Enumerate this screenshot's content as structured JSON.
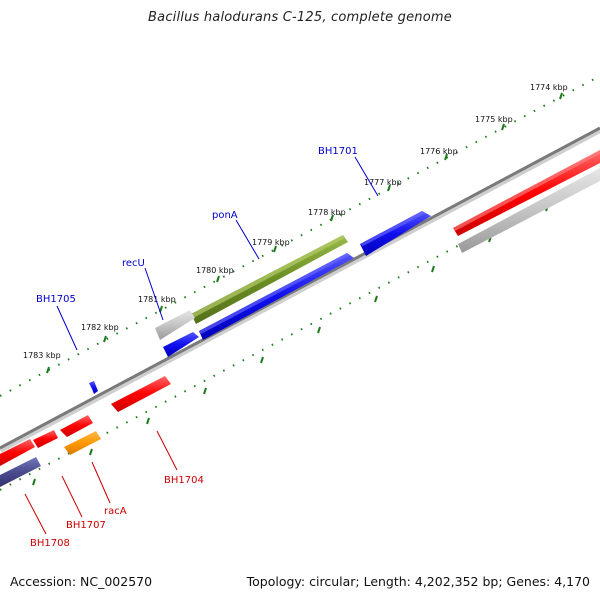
{
  "title": "Bacillus halodurans C-125, complete genome",
  "footer": {
    "accession": "Accession: NC_002570",
    "summary": "Topology: circular; Length: 4,202,352 bp; Genes: 4,170"
  },
  "colors": {
    "forward_label": "#0000cc",
    "reverse_label": "#cc0000",
    "backbone": "#888888",
    "ticks": "#1a7a1a"
  },
  "scale_labels": [
    "1774 kbp",
    "1775 kbp",
    "1776 kbp",
    "1777 kbp",
    "1778 kbp",
    "1779 kbp",
    "1780 kbp",
    "1781 kbp",
    "1782 kbp",
    "1783 kbp"
  ],
  "gene_labels": {
    "bh1701": "BH1701",
    "pona": "ponA",
    "recu": "recU",
    "bh1705": "BH1705",
    "bh1704": "BH1704",
    "raca": "racA",
    "bh1707": "BH1707",
    "bh1708": "BH1708"
  }
}
